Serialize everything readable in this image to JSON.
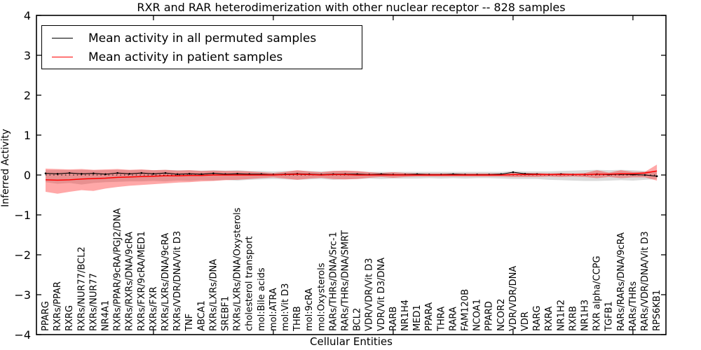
{
  "chart_data": {
    "type": "line",
    "title": "RXR and RAR heterodimerization with other nuclear receptor -- 828 samples",
    "xlabel": "Cellular Entities",
    "ylabel": "Inferred Activity",
    "ylim": [
      -4,
      4
    ],
    "yticks": [
      4,
      3,
      2,
      1,
      0,
      -1,
      -2,
      -3,
      -4
    ],
    "ytick_labels": [
      "4",
      "3",
      "2",
      "1",
      "0",
      "−1",
      "−2",
      "−3",
      "−4"
    ],
    "grid": false,
    "legend_position": "upper left",
    "zero_reference_line": true,
    "sample_count": "828",
    "categories": [
      "PPARG",
      "RXRs/PPAR",
      "RXRG",
      "RXRs/NUR77/BCL2",
      "RXRs/NUR77",
      "NR4A1",
      "RXRs/PPAR/9cRA/PGJ2/DNA",
      "RXRs/RXRs/DNA/9cRA",
      "RXRs/FXR/9cRA/MED1",
      "RXRs/FXR",
      "RXRs/LXRs/DNA/9cRA",
      "RXRs/VDR/DNA/Vit D3",
      "TNF",
      "ABCA1",
      "RXRs/LXRs/DNA",
      "SREBF1",
      "RXRs/LXRs/DNA/Oxysterols",
      "cholesterol transport",
      "mol:Bile acids",
      "mol:ATRA",
      "mol:Vit D3",
      "THRB",
      "mol:9cRA",
      "mol:Oxysterols",
      "RARs/THRs/DNA/Src-1",
      "RARs/THRs/DNA/SMRT",
      "BCL2",
      "VDR/VDR/Vit D3",
      "VDR/Vit D3/DNA",
      "RARB",
      "NR1H4",
      "MED1",
      "PPARA",
      "THRA",
      "RARA",
      "FAM120B",
      "NCOA1",
      "PPARD",
      "NCOR2",
      "VDR/VDR/DNA",
      "VDR",
      "RARG",
      "RXRA",
      "NR1H2",
      "RXRB",
      "NR1H3",
      "RXR alpha/CCPG",
      "TGFB1",
      "RARs/RARs/DNA/9cRA",
      "RARs/THRs",
      "RARs/VDR/DNA/Vit D3",
      "RPS6KB1"
    ],
    "series": [
      {
        "name": "Mean activity in all permuted samples",
        "color": "#000000",
        "style": "solid-with-dot-markers",
        "values": [
          0.04,
          0.03,
          0.05,
          0.03,
          0.04,
          0.02,
          0.05,
          0.03,
          0.05,
          0.03,
          0.05,
          0.02,
          0.03,
          0.02,
          0.04,
          0.02,
          0.03,
          0.02,
          0.02,
          0.01,
          0.02,
          0.03,
          0.02,
          0.01,
          0.02,
          0.02,
          0.02,
          0.01,
          0.02,
          0.01,
          0.01,
          0.02,
          0.01,
          0.01,
          0.02,
          0.01,
          0.01,
          0.01,
          0.02,
          0.07,
          0.03,
          0.02,
          0.01,
          0.02,
          0.01,
          0.01,
          0.02,
          0.01,
          0.02,
          0.01,
          0.0,
          -0.03
        ]
      },
      {
        "name": "Mean activity in patient samples",
        "color": "#ff0000",
        "style": "solid",
        "values": [
          -0.12,
          -0.13,
          -0.12,
          -0.1,
          -0.09,
          -0.08,
          -0.06,
          -0.05,
          -0.04,
          -0.03,
          -0.02,
          -0.02,
          -0.01,
          -0.01,
          0.0,
          0.0,
          0.0,
          0.0,
          0.0,
          0.0,
          0.01,
          0.02,
          0.01,
          0.0,
          0.01,
          0.01,
          0.0,
          0.0,
          0.0,
          0.0,
          0.0,
          0.0,
          0.0,
          0.0,
          0.0,
          0.0,
          0.0,
          0.0,
          0.0,
          0.01,
          0.01,
          0.01,
          0.01,
          0.01,
          0.01,
          0.01,
          0.02,
          0.02,
          0.03,
          0.03,
          0.05,
          0.1
        ]
      }
    ],
    "bands": [
      {
        "name": "permuted samples range",
        "color": "#000000",
        "opacity": 0.14,
        "upper": [
          0.12,
          0.13,
          0.12,
          0.13,
          0.12,
          0.12,
          0.13,
          0.12,
          0.13,
          0.12,
          0.13,
          0.12,
          0.12,
          0.11,
          0.12,
          0.11,
          0.12,
          0.1,
          0.1,
          0.09,
          0.1,
          0.11,
          0.1,
          0.09,
          0.1,
          0.1,
          0.09,
          0.08,
          0.08,
          0.08,
          0.08,
          0.08,
          0.08,
          0.08,
          0.08,
          0.08,
          0.08,
          0.08,
          0.08,
          0.1,
          0.09,
          0.09,
          0.09,
          0.1,
          0.11,
          0.12,
          0.13,
          0.12,
          0.13,
          0.12,
          0.1,
          0.08
        ],
        "lower": [
          -0.18,
          -0.22,
          -0.2,
          -0.24,
          -0.2,
          -0.18,
          -0.17,
          -0.16,
          -0.16,
          -0.15,
          -0.16,
          -0.14,
          -0.15,
          -0.13,
          -0.14,
          -0.12,
          -0.14,
          -0.12,
          -0.11,
          -0.1,
          -0.11,
          -0.12,
          -0.11,
          -0.1,
          -0.12,
          -0.11,
          -0.1,
          -0.09,
          -0.1,
          -0.09,
          -0.09,
          -0.09,
          -0.08,
          -0.09,
          -0.08,
          -0.09,
          -0.08,
          -0.08,
          -0.09,
          -0.1,
          -0.1,
          -0.1,
          -0.12,
          -0.13,
          -0.14,
          -0.15,
          -0.15,
          -0.14,
          -0.13,
          -0.14,
          -0.12,
          -0.1
        ]
      },
      {
        "name": "patient samples range",
        "color": "#ff0000",
        "opacity": 0.34,
        "upper": [
          0.16,
          0.15,
          0.14,
          0.15,
          0.13,
          0.14,
          0.15,
          0.13,
          0.14,
          0.12,
          0.13,
          0.11,
          0.12,
          0.1,
          0.11,
          0.1,
          0.1,
          0.09,
          0.07,
          0.05,
          0.08,
          0.12,
          0.09,
          0.07,
          0.1,
          0.11,
          0.1,
          0.07,
          0.05,
          0.07,
          0.05,
          0.04,
          0.04,
          0.04,
          0.04,
          0.04,
          0.04,
          0.04,
          0.04,
          0.05,
          0.05,
          0.05,
          0.04,
          0.05,
          0.04,
          0.05,
          0.12,
          0.06,
          0.12,
          0.08,
          0.08,
          0.26
        ],
        "lower": [
          -0.42,
          -0.47,
          -0.42,
          -0.38,
          -0.4,
          -0.34,
          -0.3,
          -0.27,
          -0.25,
          -0.23,
          -0.21,
          -0.19,
          -0.18,
          -0.16,
          -0.15,
          -0.13,
          -0.12,
          -0.1,
          -0.08,
          -0.06,
          -0.09,
          -0.12,
          -0.09,
          -0.07,
          -0.1,
          -0.11,
          -0.1,
          -0.07,
          -0.05,
          -0.07,
          -0.05,
          -0.04,
          -0.04,
          -0.04,
          -0.04,
          -0.04,
          -0.04,
          -0.04,
          -0.04,
          -0.05,
          -0.05,
          -0.05,
          -0.04,
          -0.05,
          -0.04,
          -0.05,
          -0.08,
          -0.05,
          -0.08,
          -0.06,
          -0.06,
          -0.14
        ]
      }
    ]
  }
}
